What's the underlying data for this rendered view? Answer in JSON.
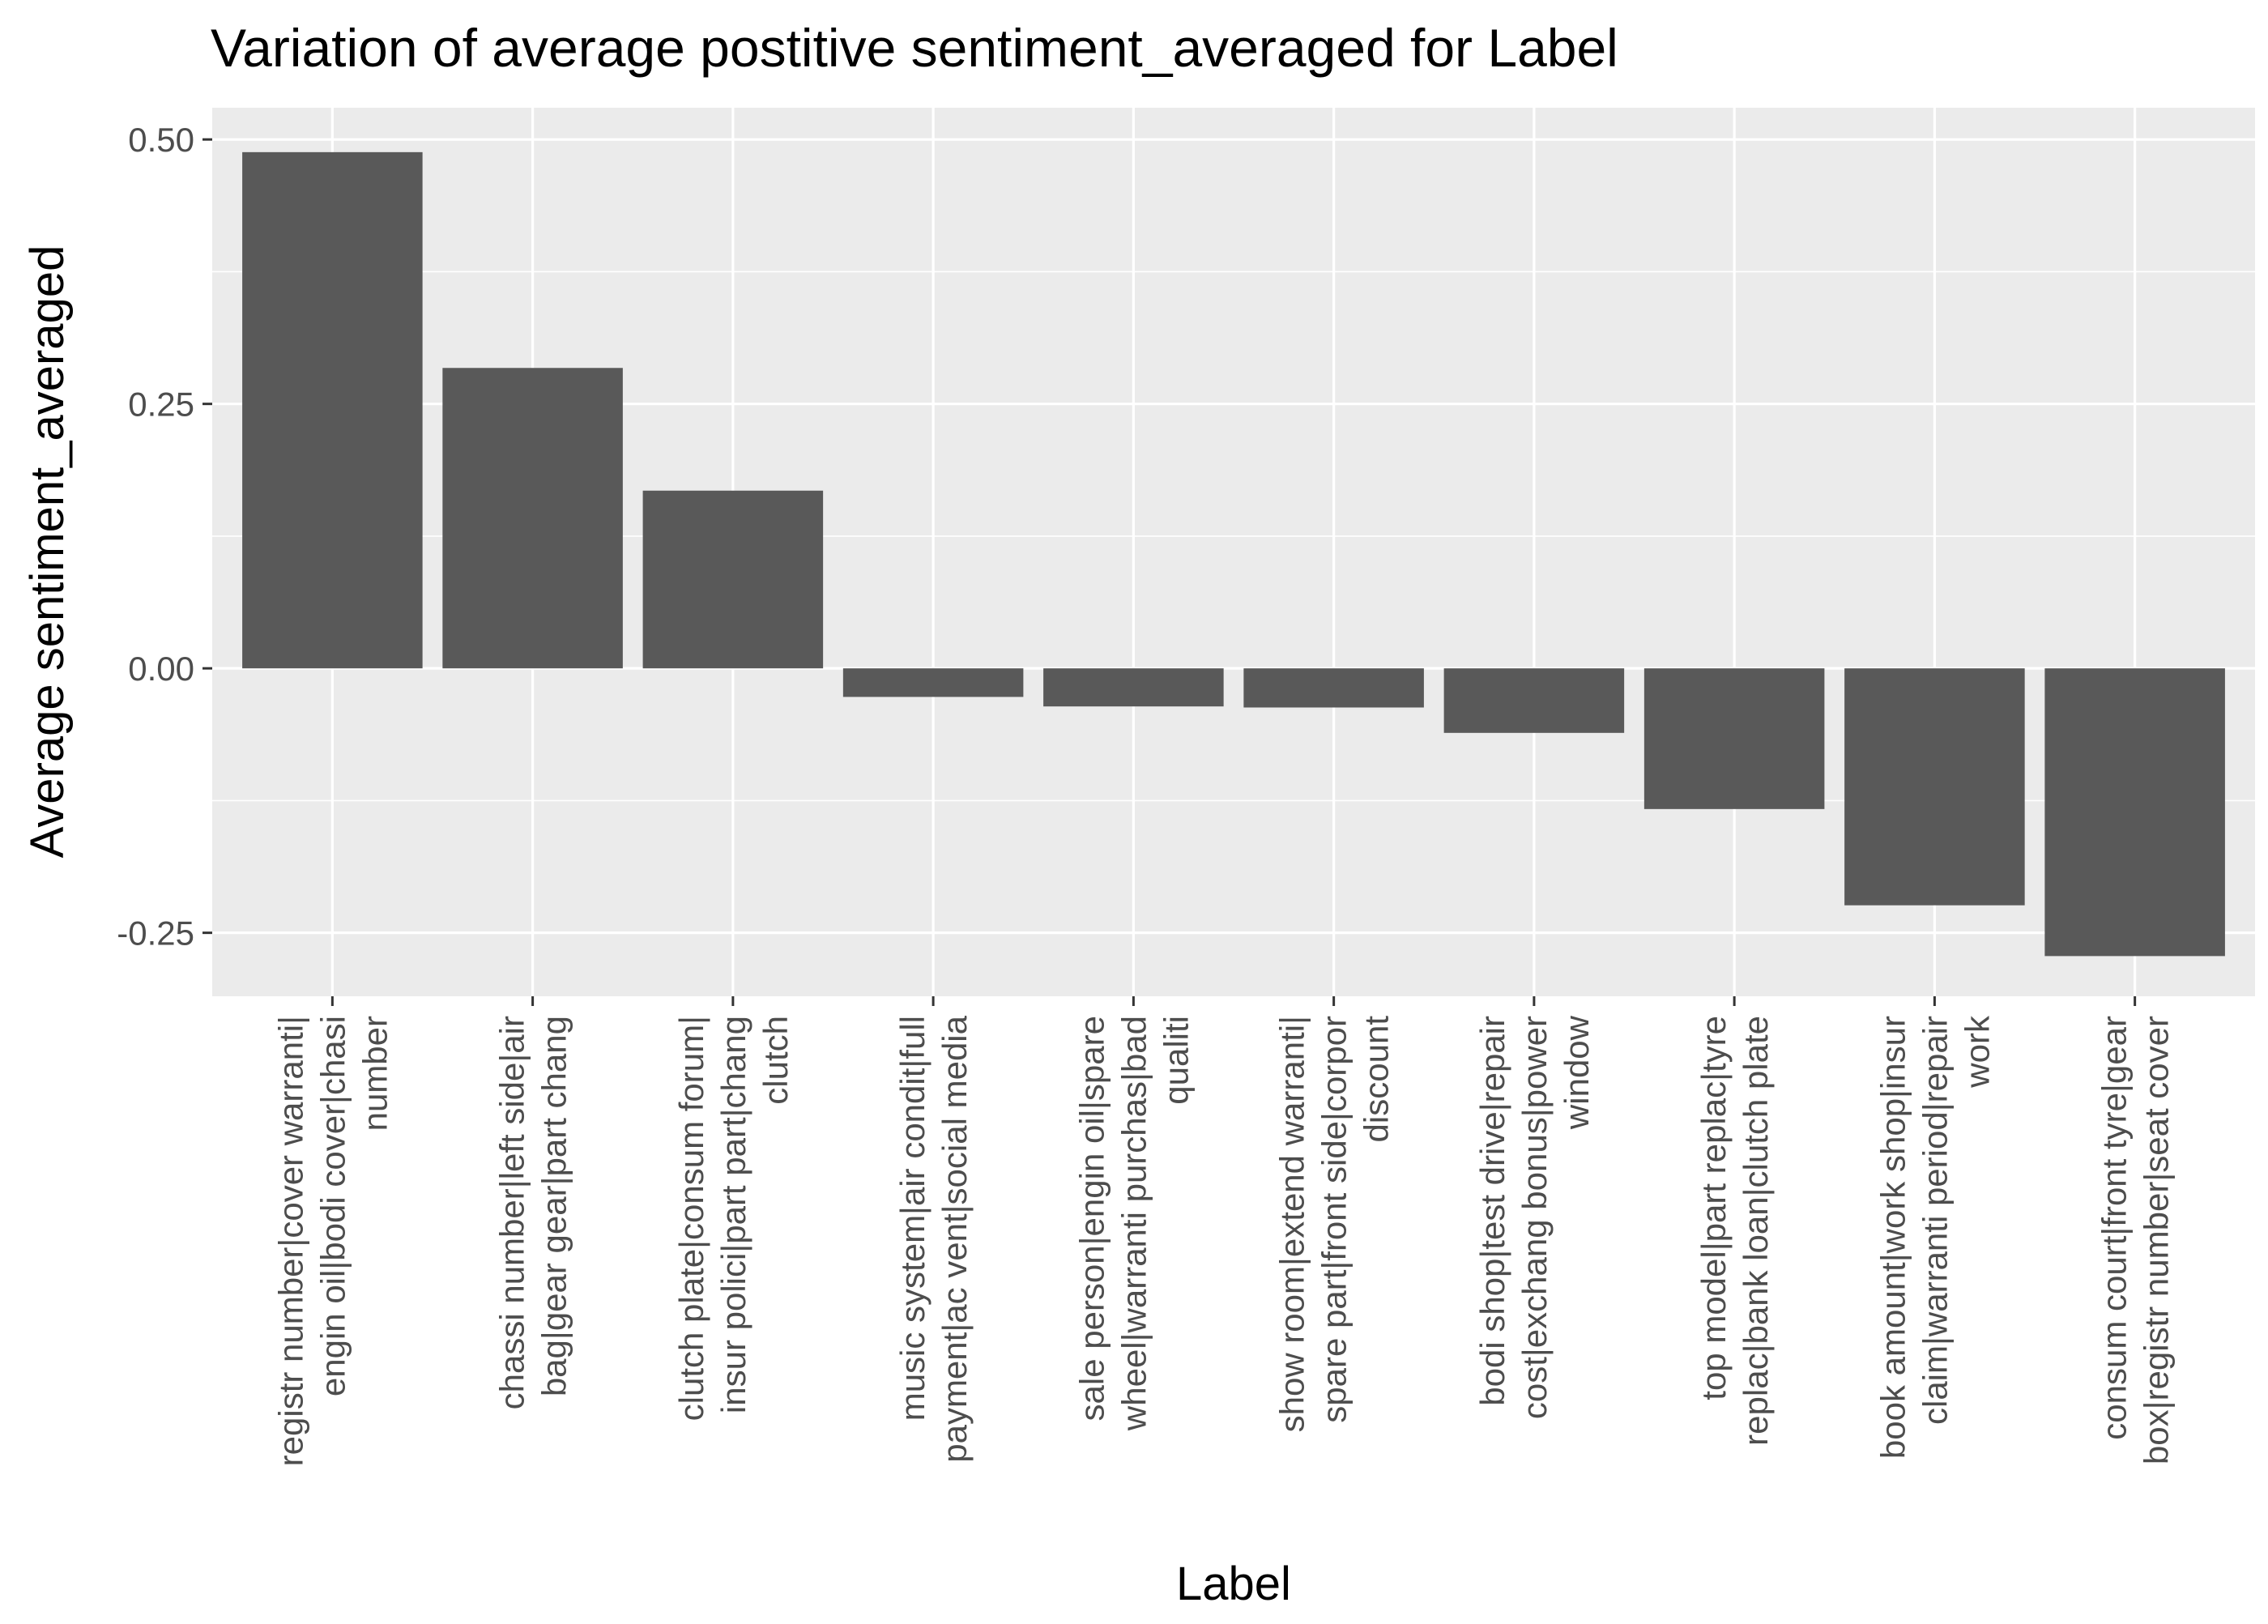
{
  "chart_data": {
    "type": "bar",
    "title": "Variation of average postitive sentiment_averaged for Label",
    "xlabel": "Label",
    "ylabel": "Average  sentiment_averaged",
    "ylim": [
      -0.31,
      0.53
    ],
    "yticks": [
      -0.25,
      0.0,
      0.25,
      0.5
    ],
    "ytick_labels": [
      "-0.25",
      "0.00",
      "0.25",
      "0.50"
    ],
    "grid": true,
    "legend": "none",
    "categories": [
      [
        "registr number|cover warranti|",
        "engin oil|bodi cover|chasi",
        "number"
      ],
      [
        "chassi number|left side|air",
        "bag|gear gear|part chang"
      ],
      [
        "clutch plate|consum forum|",
        "insur polici|part part|chang",
        "clutch"
      ],
      [
        "music system|air condit|full",
        "payment|ac vent|social media"
      ],
      [
        "sale person|engin oil|spare",
        "wheel|warranti purchas|bad",
        "qualiti"
      ],
      [
        "show room|extend warranti|",
        "spare part|front side|corpor",
        "discount"
      ],
      [
        "bodi shop|test drive|repair",
        "cost|exchang bonus|power",
        "window"
      ],
      [
        "top model|part replac|tyre",
        "replac|bank loan|clutch plate"
      ],
      [
        "book amount|work shop|insur",
        "claim|warranti period|repair",
        "work"
      ],
      [
        "consum court|front tyre|gear",
        "box|registr number|seat cover"
      ]
    ],
    "values": [
      0.488,
      0.284,
      0.168,
      -0.027,
      -0.036,
      -0.037,
      -0.061,
      -0.133,
      -0.224,
      -0.272
    ],
    "colors": {
      "panel": "#ebebeb",
      "grid_major": "#ffffff",
      "bar": "#595959",
      "tick_text": "#4d4d4d",
      "tick_mark": "#333333",
      "title_text": "#000000"
    }
  }
}
